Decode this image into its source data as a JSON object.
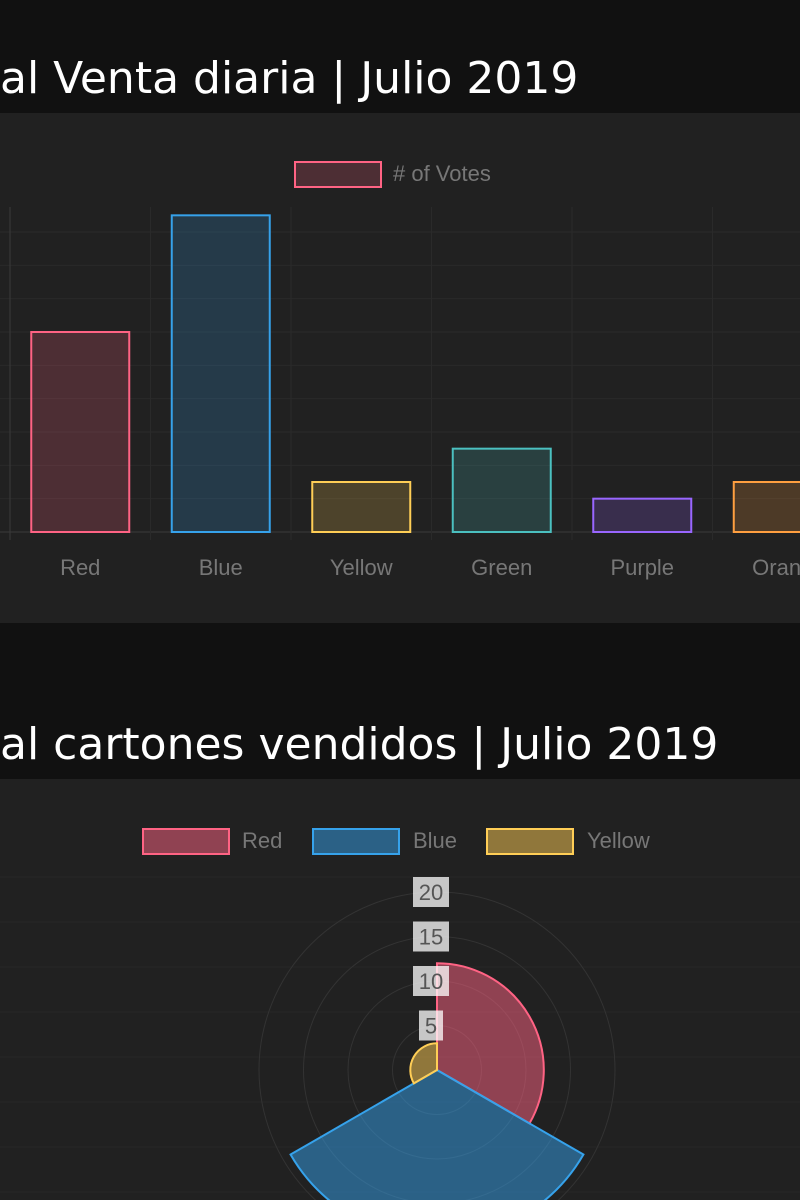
{
  "titles": {
    "chart1": "al Venta diaria | Julio 2019",
    "chart2": "al cartones vendidos | Julio 2019"
  },
  "chart_data": [
    {
      "type": "bar",
      "categories": [
        "Red",
        "Blue",
        "Yellow",
        "Green",
        "Purple",
        "Orange"
      ],
      "category_labels": [
        "Red",
        "Blue",
        "Yellow",
        "Green",
        "Purple",
        "Orang"
      ],
      "series": [
        {
          "name": "# of Votes",
          "values": [
            12,
            19,
            3,
            5,
            2,
            3
          ],
          "color": "#ff6384"
        }
      ],
      "bar_colors": [
        "#ff6384",
        "#36a2eb",
        "#ffce56",
        "#4bc0c0",
        "#9966ff",
        "#ff9f40"
      ],
      "ylim": [
        0,
        19.5
      ],
      "grid": true,
      "legend": "top-center"
    },
    {
      "type": "polarArea",
      "categories": [
        "Red",
        "Blue",
        "Yellow"
      ],
      "values": [
        12,
        19,
        3
      ],
      "colors": [
        "#ff6384",
        "#36a2eb",
        "#ffce56"
      ],
      "r_ticks": [
        "5",
        "10",
        "15",
        "20"
      ],
      "rlim": [
        0,
        20
      ],
      "grid": true,
      "legend": "top-center"
    }
  ]
}
